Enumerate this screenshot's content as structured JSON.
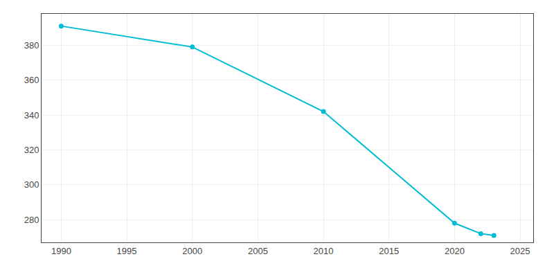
{
  "chart_data": {
    "type": "line",
    "x": [
      1990,
      2000,
      2010,
      2020,
      2022,
      2023
    ],
    "values": [
      391,
      379,
      342,
      278,
      272,
      271
    ],
    "color": "#00BCD4",
    "marker": "circle",
    "xlim": [
      1988.5,
      2026
    ],
    "xticks": [
      1990,
      1995,
      2000,
      2005,
      2010,
      2015,
      2020,
      2025
    ],
    "ylim": [
      267,
      398
    ],
    "yticks": [
      280,
      300,
      320,
      340,
      360,
      380
    ],
    "grid": true
  }
}
